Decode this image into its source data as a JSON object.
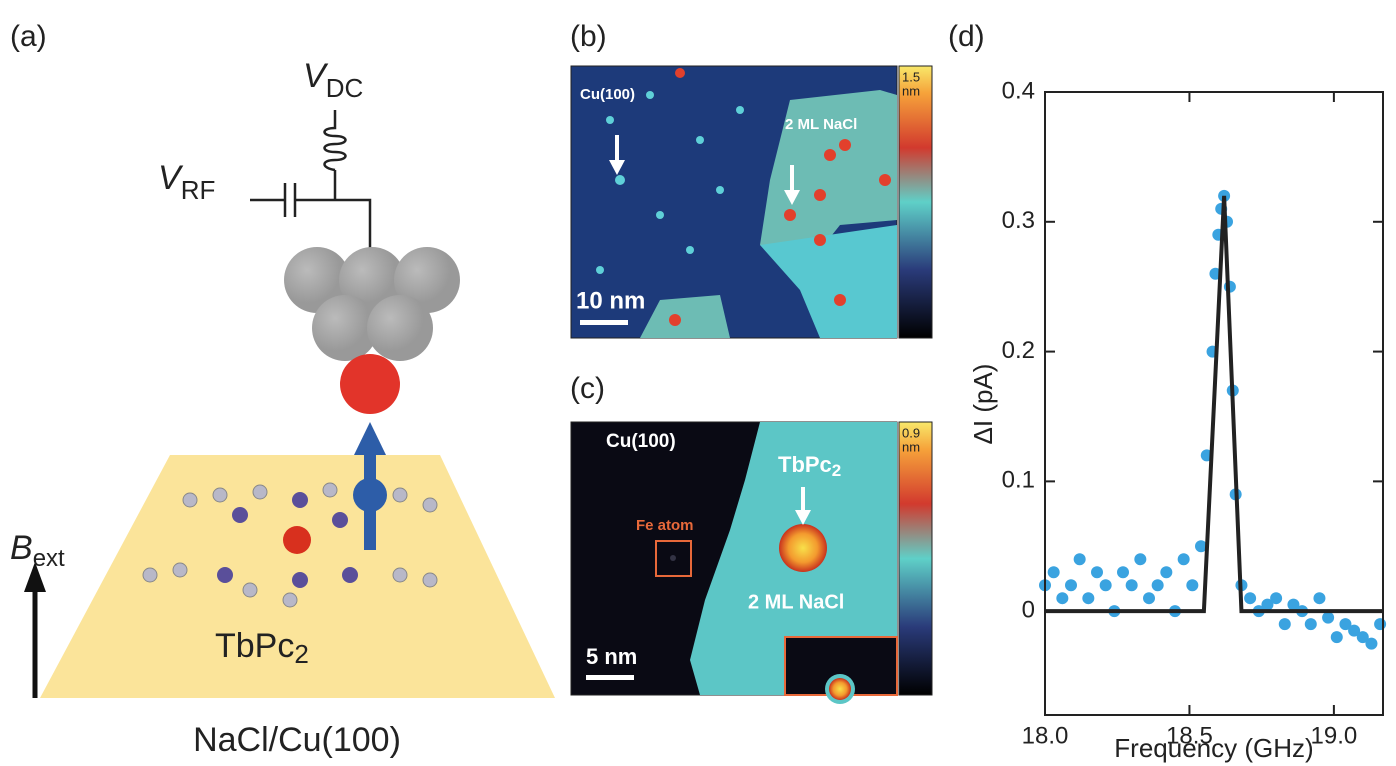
{
  "panel_a": {
    "label": "(a)",
    "vdc": {
      "symbol": "V",
      "subscript": "DC"
    },
    "vrf": {
      "symbol": "V",
      "subscript": "RF"
    },
    "bext": {
      "symbol": "B",
      "subscript": "ext"
    },
    "molecule": {
      "name": "TbPc",
      "subscript": "2"
    },
    "substrate": "NaCl/Cu(100)"
  },
  "panel_b": {
    "label": "(b)",
    "cu_label": "Cu(100)",
    "nacl_label": "2 ML NaCl",
    "scale_bar": "10 nm",
    "colorbar_max": "1.5",
    "colorbar_unit": "nm"
  },
  "panel_c": {
    "label": "(c)",
    "cu_label": "Cu(100)",
    "molecule": {
      "name": "TbPc",
      "subscript": "2"
    },
    "fe_label": "Fe atom",
    "nacl_label": "2 ML NaCl",
    "scale_bar": "5 nm",
    "colorbar_max": "0.9",
    "colorbar_unit": "nm"
  },
  "chart_data": {
    "type": "scatter",
    "panel_label": "(d)",
    "xlabel": "Frequency (GHz)",
    "ylabel": "ΔI (pA)",
    "xlim": [
      18.0,
      19.17
    ],
    "ylim": [
      -0.08,
      0.4
    ],
    "xticks": [
      {
        "value": 18.0,
        "label": "18.0"
      },
      18.5,
      {
        "value": 19.0,
        "label": "19.0"
      }
    ],
    "yticks": [
      0,
      0.1,
      0.2,
      0.3,
      0.4
    ],
    "series": [
      {
        "name": "data",
        "color": "#3aa3e0",
        "x": [
          18.0,
          18.03,
          18.06,
          18.09,
          18.12,
          18.15,
          18.18,
          18.21,
          18.24,
          18.27,
          18.3,
          18.33,
          18.36,
          18.39,
          18.42,
          18.45,
          18.48,
          18.51,
          18.54,
          18.56,
          18.58,
          18.59,
          18.6,
          18.61,
          18.62,
          18.63,
          18.64,
          18.65,
          18.66,
          18.68,
          18.71,
          18.74,
          18.77,
          18.8,
          18.83,
          18.86,
          18.89,
          18.92,
          18.95,
          18.98,
          19.01,
          19.04,
          19.07,
          19.1,
          19.13,
          19.16
        ],
        "values": [
          0.02,
          0.03,
          0.01,
          0.02,
          0.04,
          0.01,
          0.03,
          0.02,
          0.0,
          0.03,
          0.02,
          0.04,
          0.01,
          0.02,
          0.03,
          0.0,
          0.04,
          0.02,
          0.05,
          0.12,
          0.2,
          0.26,
          0.29,
          0.31,
          0.32,
          0.3,
          0.25,
          0.17,
          0.09,
          0.02,
          0.01,
          0.0,
          0.005,
          0.01,
          -0.01,
          0.005,
          0.0,
          -0.01,
          0.01,
          -0.005,
          -0.02,
          -0.01,
          -0.015,
          -0.02,
          -0.025,
          -0.01
        ]
      },
      {
        "name": "fit",
        "color": "#222222",
        "x": [
          18.0,
          18.55,
          18.62,
          18.68,
          19.17
        ],
        "values": [
          0,
          0,
          0.32,
          0,
          0
        ]
      }
    ]
  }
}
